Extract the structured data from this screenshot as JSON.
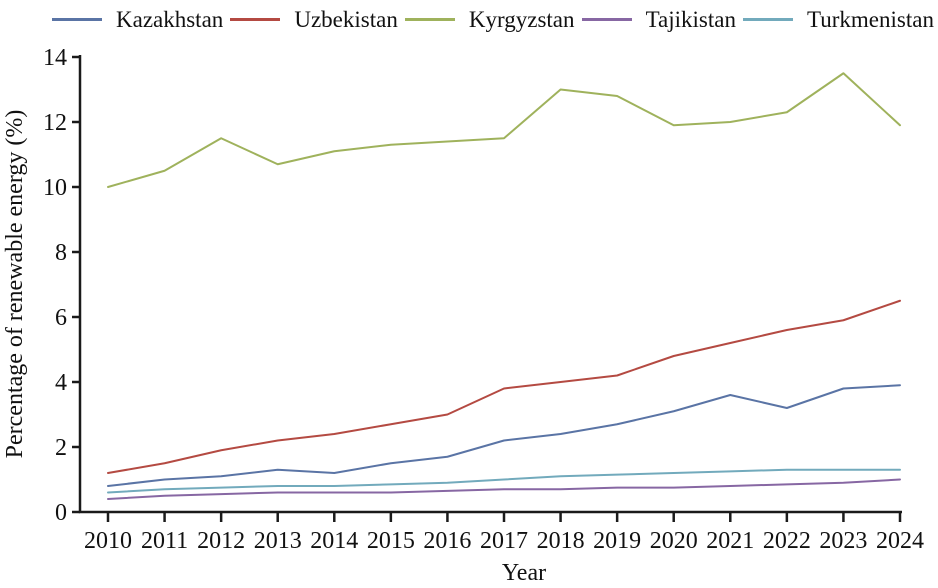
{
  "legend": {
    "entries": [
      "Kazakhstan",
      "Uzbekistan",
      "Kyrgyzstan",
      "Tajikistan",
      "Turkmenistan"
    ]
  },
  "chart_data": {
    "type": "line",
    "title": "",
    "xlabel": "Year",
    "ylabel": "Percentage of renewable energy (%)",
    "x": [
      2010,
      2011,
      2012,
      2013,
      2014,
      2015,
      2016,
      2017,
      2018,
      2019,
      2020,
      2021,
      2022,
      2023,
      2024
    ],
    "ylim": [
      0,
      14
    ],
    "ytick_step": 2,
    "grid": false,
    "legend_position": "top",
    "axis_color": "#1a1a1a",
    "series": [
      {
        "name": "Kazakhstan",
        "color": "#5a74a5",
        "values": [
          0.8,
          1.0,
          1.1,
          1.3,
          1.2,
          1.5,
          1.7,
          2.2,
          2.4,
          2.7,
          3.1,
          3.6,
          3.2,
          3.8,
          3.9
        ]
      },
      {
        "name": "Uzbekistan",
        "color": "#b44a42",
        "values": [
          1.2,
          1.5,
          1.9,
          2.2,
          2.4,
          2.7,
          3.0,
          3.8,
          4.0,
          4.2,
          4.8,
          5.2,
          5.6,
          5.9,
          6.5
        ]
      },
      {
        "name": "Kyrgyzstan",
        "color": "#9fb25c",
        "values": [
          10.0,
          10.5,
          11.5,
          10.7,
          11.1,
          11.3,
          11.4,
          11.5,
          13.0,
          12.8,
          11.9,
          12.0,
          12.3,
          13.5,
          11.9
        ]
      },
      {
        "name": "Tajikistan",
        "color": "#8767a3",
        "values": [
          0.4,
          0.5,
          0.55,
          0.6,
          0.6,
          0.6,
          0.65,
          0.7,
          0.7,
          0.75,
          0.75,
          0.8,
          0.85,
          0.9,
          1.0
        ]
      },
      {
        "name": "Turkmenistan",
        "color": "#72aabc",
        "values": [
          0.6,
          0.7,
          0.75,
          0.8,
          0.8,
          0.85,
          0.9,
          1.0,
          1.1,
          1.15,
          1.2,
          1.25,
          1.3,
          1.3,
          1.3
        ]
      }
    ]
  }
}
